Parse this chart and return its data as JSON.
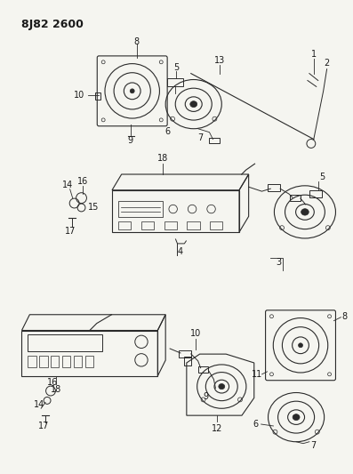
{
  "title": "8J82 2600",
  "background_color": "#f5f5f0",
  "line_color": "#2a2a2a",
  "text_color": "#1a1a1a",
  "figsize": [
    3.97,
    5.33
  ],
  "dpi": 100
}
